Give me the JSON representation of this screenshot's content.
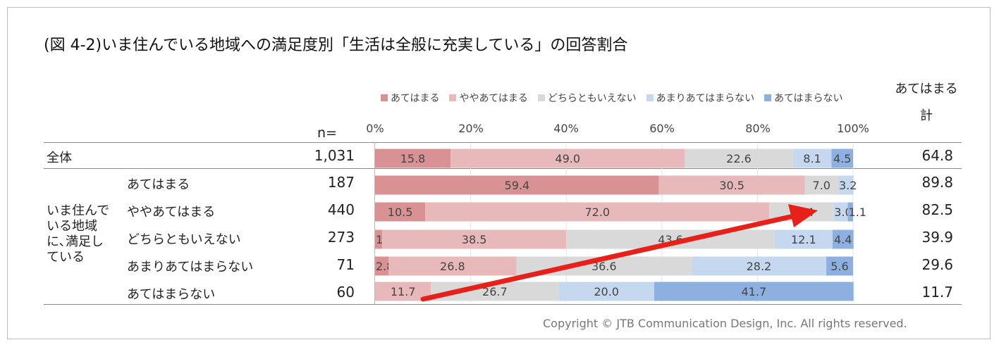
{
  "title": "(図 4-2)いま住んでいる地域への満足度別「生活は全般に充実している」の回答割合",
  "copyright": "Copyright © JTB Communication Design, Inc. All rights reserved.",
  "n_header": "n=",
  "total_header": [
    "あてはまる",
    "計"
  ],
  "group_label": [
    "いま住んで",
    "いる地域",
    "に､満足し",
    "ている"
  ],
  "chart_data": {
    "type": "bar",
    "orientation": "horizontal",
    "stacked": "percent",
    "x_ticks": [
      "0%",
      "20%",
      "40%",
      "60%",
      "80%",
      "100%"
    ],
    "xlim": [
      0,
      100
    ],
    "legend_position": "top",
    "legend": [
      "あてはまる",
      "ややあてはまる",
      "どちらともいえない",
      "あまりあてはまらない",
      "あてはまらない"
    ],
    "colors": [
      "#d89294",
      "#e8b9ba",
      "#d9d9d9",
      "#c6d8ef",
      "#8db0e0"
    ],
    "categories": [
      "全体",
      "あてはまる",
      "ややあてはまる",
      "どちらともいえない",
      "あまりあてはまらない",
      "あてはまらない"
    ],
    "n": [
      "1,031",
      "187",
      "440",
      "273",
      "71",
      "60"
    ],
    "totals": [
      "64.8",
      "89.8",
      "82.5",
      "39.9",
      "29.6",
      "11.7"
    ],
    "series": [
      {
        "name": "あてはまる",
        "values": [
          15.8,
          59.4,
          10.5,
          1.5,
          2.8,
          0
        ]
      },
      {
        "name": "ややあてはまる",
        "values": [
          49.0,
          30.5,
          72.0,
          38.5,
          26.8,
          11.7
        ]
      },
      {
        "name": "どちらともいえない",
        "values": [
          22.6,
          7.0,
          13.4,
          43.6,
          36.6,
          26.7
        ]
      },
      {
        "name": "あまりあてはまらない",
        "values": [
          8.1,
          3.2,
          3.0,
          12.1,
          28.2,
          20.0
        ]
      },
      {
        "name": "あてはまらない",
        "values": [
          4.5,
          0,
          1.1,
          4.4,
          5.6,
          41.7
        ]
      }
    ],
    "annotation": "red arrow"
  }
}
